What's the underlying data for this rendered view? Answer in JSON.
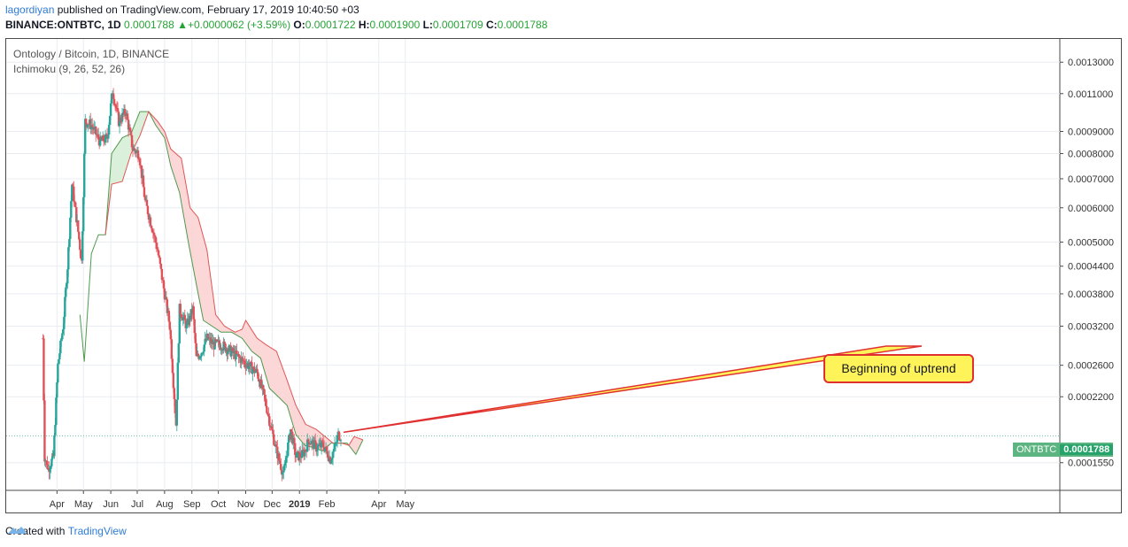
{
  "header": {
    "username": "lagordiyan",
    "published_text": "published on TradingView.com, February 17, 2019 10:40:50 +03",
    "symbol": "BINANCE:ONTBTC, 1D",
    "last_price": "0.0001788",
    "change": "+0.0000062 (+3.59%)",
    "open_label": "O:",
    "open": "0.0001722",
    "high_label": "H:",
    "high": "0.0001900",
    "low_label": "L:",
    "low": "0.0001709",
    "close_label": "C:",
    "close": "0.0001788"
  },
  "legend": {
    "title": "Ontology / Bitcoin, 1D, BINANCE",
    "indicator": "Ichimoku (9, 26, 52, 26)"
  },
  "annotation": {
    "text": "Beginning of uptrend"
  },
  "price_tag": {
    "symbol": "ONTBTC",
    "value": "0.0001788"
  },
  "footer": {
    "created_with": "Created with",
    "brand": "TradingView"
  },
  "colors": {
    "up": "#26a69a",
    "down": "#e0525a",
    "cloud_bull": "#d8efd8",
    "cloud_bear": "#fcd4d4",
    "span_a": "#4d9a4d",
    "span_b": "#e05555"
  },
  "chart_data": {
    "type": "candlestick",
    "title": "Ontology / Bitcoin, 1D, BINANCE",
    "indicator": "Ichimoku (9, 26, 52, 26)",
    "scale": "log",
    "ylim": [
      0.000137,
      0.00139
    ],
    "y_ticks": [
      "0.0013000",
      "0.0011000",
      "0.0009000",
      "0.0008000",
      "0.0007000",
      "0.0006000",
      "0.0005000",
      "0.0004400",
      "0.0003800",
      "0.0003200",
      "0.0002600",
      "0.0002200",
      "0.0001550"
    ],
    "x_ticks": [
      "Apr",
      "May",
      "Jun",
      "Jul",
      "Aug",
      "Sep",
      "Oct",
      "Nov",
      "Dec",
      "2019",
      "Feb",
      "Apr",
      "May"
    ],
    "close_trend": [
      [
        "2018-03-16",
        0.0003
      ],
      [
        "2018-03-18",
        0.00016
      ],
      [
        "2018-03-22",
        0.00015
      ],
      [
        "2018-03-28",
        0.00016
      ],
      [
        "2018-04-02",
        0.00026
      ],
      [
        "2018-04-08",
        0.00032
      ],
      [
        "2018-04-13",
        0.00044
      ],
      [
        "2018-04-18",
        0.00068
      ],
      [
        "2018-04-24",
        0.00055
      ],
      [
        "2018-04-29",
        0.00045
      ],
      [
        "2018-05-03",
        0.00095
      ],
      [
        "2018-05-10",
        0.00093
      ],
      [
        "2018-05-20",
        0.00085
      ],
      [
        "2018-05-28",
        0.00087
      ],
      [
        "2018-06-03",
        0.00112
      ],
      [
        "2018-06-10",
        0.00095
      ],
      [
        "2018-06-18",
        0.001
      ],
      [
        "2018-06-26",
        0.00082
      ],
      [
        "2018-07-03",
        0.0008
      ],
      [
        "2018-07-10",
        0.00062
      ],
      [
        "2018-07-17",
        0.00055
      ],
      [
        "2018-07-24",
        0.00048
      ],
      [
        "2018-08-01",
        0.00038
      ],
      [
        "2018-08-07",
        0.00032
      ],
      [
        "2018-08-14",
        0.00019
      ],
      [
        "2018-08-18",
        0.00035
      ],
      [
        "2018-08-26",
        0.00032
      ],
      [
        "2018-09-02",
        0.00035
      ],
      [
        "2018-09-06",
        0.00027
      ],
      [
        "2018-09-12",
        0.00028
      ],
      [
        "2018-09-18",
        0.0003
      ],
      [
        "2018-09-26",
        0.00029
      ],
      [
        "2018-10-05",
        0.00029
      ],
      [
        "2018-10-15",
        0.00028
      ],
      [
        "2018-10-25",
        0.00027
      ],
      [
        "2018-11-04",
        0.00026
      ],
      [
        "2018-11-14",
        0.00025
      ],
      [
        "2018-11-22",
        0.00022
      ],
      [
        "2018-11-29",
        0.00019
      ],
      [
        "2018-12-06",
        0.000165
      ],
      [
        "2018-12-14",
        0.000145
      ],
      [
        "2018-12-18",
        0.000165
      ],
      [
        "2018-12-22",
        0.000185
      ],
      [
        "2018-12-28",
        0.00016
      ],
      [
        "2019-01-05",
        0.000162
      ],
      [
        "2019-01-12",
        0.000175
      ],
      [
        "2019-01-20",
        0.000168
      ],
      [
        "2019-01-28",
        0.00017
      ],
      [
        "2019-02-05",
        0.000158
      ],
      [
        "2019-02-11",
        0.00017
      ],
      [
        "2019-02-14",
        0.00018
      ],
      [
        "2019-02-17",
        0.0001788
      ]
    ],
    "cloud_span_a": [
      [
        "2018-04-27",
        0.00034
      ],
      [
        "2018-05-02",
        0.000265
      ],
      [
        "2018-05-10",
        0.00047
      ],
      [
        "2018-05-18",
        0.00052
      ],
      [
        "2018-05-26",
        0.00052
      ],
      [
        "2018-06-02",
        0.0008
      ],
      [
        "2018-06-14",
        0.00087
      ],
      [
        "2018-06-24",
        0.00089
      ],
      [
        "2018-07-04",
        0.001
      ],
      [
        "2018-07-14",
        0.001
      ],
      [
        "2018-07-22",
        0.00093
      ],
      [
        "2018-08-01",
        0.00087
      ],
      [
        "2018-08-08",
        0.00075
      ],
      [
        "2018-08-18",
        0.00065
      ],
      [
        "2018-08-28",
        0.0005
      ],
      [
        "2018-09-06",
        0.0004
      ],
      [
        "2018-09-14",
        0.00033
      ],
      [
        "2018-09-24",
        0.00032
      ],
      [
        "2018-10-04",
        0.00031
      ],
      [
        "2018-10-16",
        0.00031
      ],
      [
        "2018-10-28",
        0.0003
      ],
      [
        "2018-11-08",
        0.00028
      ],
      [
        "2018-11-18",
        0.00027
      ],
      [
        "2018-11-28",
        0.00023
      ],
      [
        "2018-12-08",
        0.00022
      ],
      [
        "2018-12-18",
        0.00021
      ],
      [
        "2018-12-28",
        0.00018
      ],
      [
        "2019-01-07",
        0.00017
      ],
      [
        "2019-01-17",
        0.000168
      ],
      [
        "2019-01-27",
        0.000165
      ],
      [
        "2019-02-06",
        0.000172
      ],
      [
        "2019-02-14",
        0.000172
      ],
      [
        "2019-02-24",
        0.000172
      ],
      [
        "2019-03-06",
        0.000162
      ],
      [
        "2019-03-14",
        0.000175
      ]
    ],
    "cloud_span_b": [
      [
        "2018-05-26",
        0.00052
      ],
      [
        "2018-06-02",
        0.00068
      ],
      [
        "2018-06-14",
        0.00069
      ],
      [
        "2018-06-24",
        0.0008
      ],
      [
        "2018-07-04",
        0.00088
      ],
      [
        "2018-07-14",
        0.001
      ],
      [
        "2018-07-24",
        0.00095
      ],
      [
        "2018-08-01",
        0.0009
      ],
      [
        "2018-08-08",
        0.00082
      ],
      [
        "2018-08-20",
        0.00078
      ],
      [
        "2018-08-30",
        0.0006
      ],
      [
        "2018-09-08",
        0.00057
      ],
      [
        "2018-09-18",
        0.00048
      ],
      [
        "2018-09-28",
        0.00034
      ],
      [
        "2018-10-08",
        0.00032
      ],
      [
        "2018-10-20",
        0.00031
      ],
      [
        "2018-10-28",
        0.000315
      ],
      [
        "2018-11-01",
        0.00033
      ],
      [
        "2018-11-14",
        0.0003
      ],
      [
        "2018-11-24",
        0.00029
      ],
      [
        "2018-12-06",
        0.00028
      ],
      [
        "2018-12-18",
        0.00024
      ],
      [
        "2018-12-28",
        0.00021
      ],
      [
        "2019-01-08",
        0.00019
      ],
      [
        "2019-01-20",
        0.000185
      ],
      [
        "2019-01-30",
        0.000178
      ],
      [
        "2019-02-08",
        0.000172
      ],
      [
        "2019-02-18",
        0.000172
      ],
      [
        "2019-02-26",
        0.00017
      ],
      [
        "2019-03-04",
        0.000178
      ],
      [
        "2019-03-14",
        0.000175
      ]
    ]
  }
}
